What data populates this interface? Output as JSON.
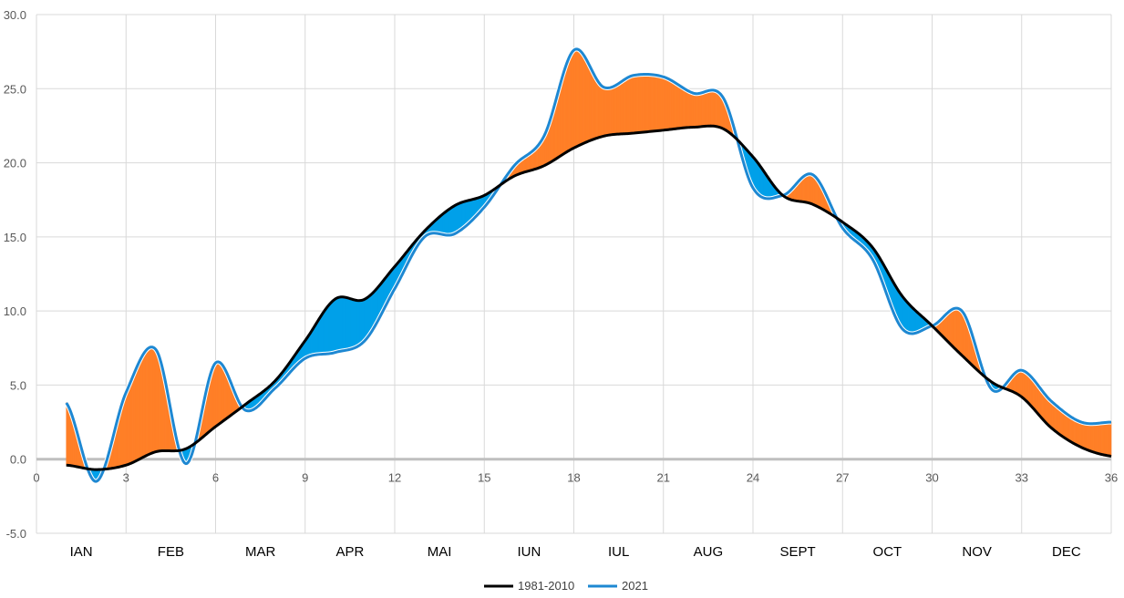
{
  "chart_data": {
    "type": "area",
    "x": [
      1,
      2,
      3,
      4,
      5,
      6,
      7,
      8,
      9,
      10,
      11,
      12,
      13,
      14,
      15,
      16,
      17,
      18,
      19,
      20,
      21,
      22,
      23,
      24,
      25,
      26,
      27,
      28,
      29,
      30,
      31,
      32,
      33,
      34,
      35,
      36
    ],
    "series": [
      {
        "name": "1981-2010",
        "color": "#000000",
        "values": [
          -0.4,
          -0.7,
          -0.4,
          0.5,
          0.7,
          2.2,
          3.7,
          5.3,
          8.0,
          10.8,
          10.8,
          13.0,
          15.4,
          17.1,
          17.8,
          19.1,
          19.8,
          21.0,
          21.8,
          22.0,
          22.2,
          22.4,
          22.3,
          20.4,
          17.8,
          17.2,
          16.0,
          14.3,
          11.0,
          9.0,
          7.0,
          5.2,
          4.2,
          2.1,
          0.8,
          0.2
        ]
      },
      {
        "name": "2021",
        "color": "#1E88D2",
        "values": [
          3.8,
          -1.5,
          4.5,
          7.4,
          -0.3,
          6.5,
          3.3,
          4.8,
          6.8,
          7.2,
          8.0,
          11.5,
          15.0,
          15.2,
          17.0,
          19.8,
          21.8,
          27.6,
          25.1,
          25.9,
          25.8,
          24.7,
          24.4,
          18.3,
          17.8,
          19.2,
          15.6,
          13.5,
          8.8,
          9.0,
          10.0,
          4.7,
          6.0,
          3.9,
          2.5,
          2.5
        ]
      }
    ],
    "fill_colors": {
      "above": "#FF7F27",
      "below": "#00A0E9"
    },
    "x_ticks": [
      "0",
      "3",
      "6",
      "9",
      "12",
      "15",
      "18",
      "21",
      "24",
      "27",
      "30",
      "33",
      "36"
    ],
    "y_ticks": [
      "-5.0",
      "0.0",
      "5.0",
      "10.0",
      "15.0",
      "20.0",
      "25.0",
      "30.0"
    ],
    "xlim": [
      0,
      36
    ],
    "ylim": [
      -5,
      30
    ],
    "months": [
      "IAN",
      "FEB",
      "MAR",
      "APR",
      "MAI",
      "IUN",
      "IUL",
      "AUG",
      "SEPT",
      "OCT",
      "NOV",
      "DEC"
    ],
    "grid": true,
    "legend_position": "bottom"
  },
  "legend": {
    "labels": [
      "1981-2010",
      "2021"
    ]
  }
}
